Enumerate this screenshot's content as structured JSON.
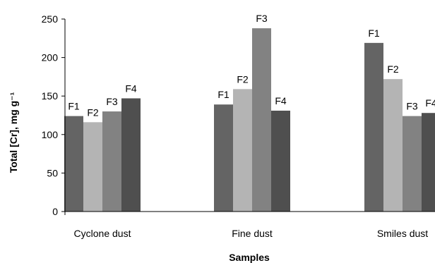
{
  "chart_data": {
    "type": "bar",
    "title": "",
    "xlabel": "Samples",
    "ylabel": "Total [Cr], mg g⁻¹",
    "ylim": [
      0,
      250
    ],
    "yticks": [
      0,
      50,
      100,
      150,
      200,
      250
    ],
    "grid": false,
    "legend": "none",
    "categories": [
      "Cyclone dust",
      "Fine dust",
      "Smiles dust"
    ],
    "series": [
      {
        "name": "F1",
        "color": "#646464",
        "values": [
          124,
          139,
          219
        ]
      },
      {
        "name": "F2",
        "color": "#b4b4b4",
        "values": [
          116,
          159,
          172
        ]
      },
      {
        "name": "F3",
        "color": "#828282",
        "values": [
          130,
          238,
          124
        ]
      },
      {
        "name": "F4",
        "color": "#4f4f4f",
        "values": [
          147,
          131,
          128
        ]
      }
    ]
  }
}
